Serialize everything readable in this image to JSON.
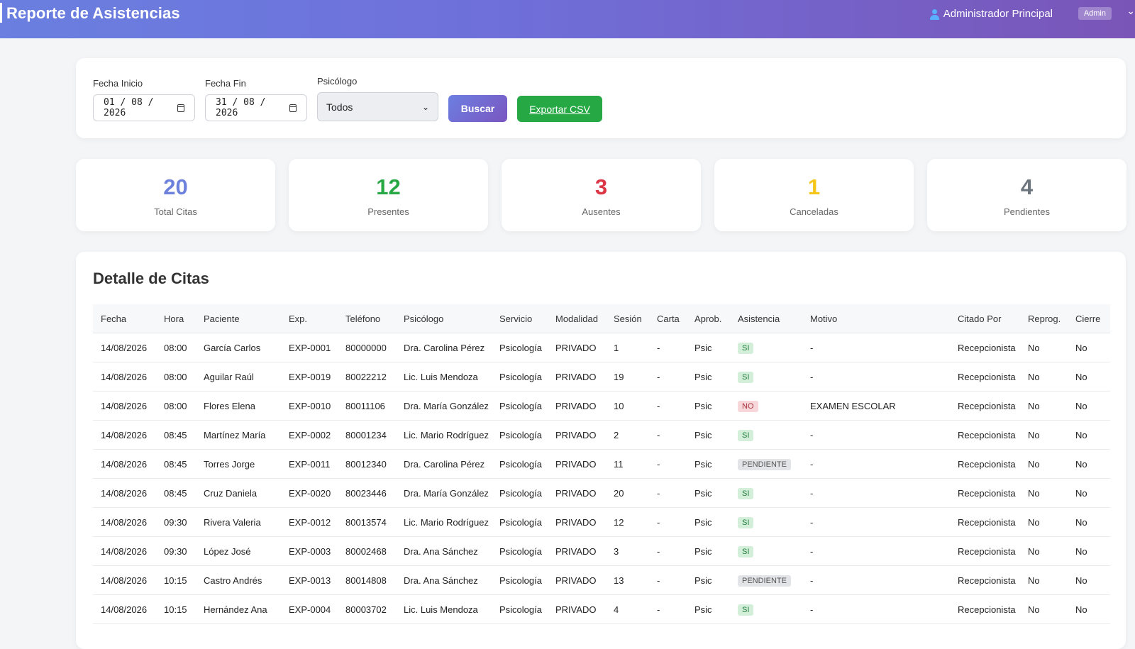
{
  "header": {
    "title": "Reporte de Asistencias",
    "user_name": "Administrador Principal",
    "role_badge": "Admin",
    "user_icon": "user-icon"
  },
  "filters": {
    "start_label": "Fecha Inicio",
    "start_value": "01 / 08 / 2026",
    "end_label": "Fecha Fin",
    "end_value": "31 / 08 / 2026",
    "psych_label": "Psicólogo",
    "psych_selected": "Todos",
    "search_button": "Buscar",
    "export_button": "Exportar CSV"
  },
  "stats": [
    {
      "value": "20",
      "label": "Total Citas",
      "color": "#6c80dc"
    },
    {
      "value": "12",
      "label": "Presentes",
      "color": "#28a745"
    },
    {
      "value": "3",
      "label": "Ausentes",
      "color": "#dc3545"
    },
    {
      "value": "1",
      "label": "Canceladas",
      "color": "#f5c518"
    },
    {
      "value": "4",
      "label": "Pendientes",
      "color": "#6c757d"
    }
  ],
  "detail": {
    "title": "Detalle de Citas",
    "columns": [
      "Fecha",
      "Hora",
      "Paciente",
      "Exp.",
      "Teléfono",
      "Psicólogo",
      "Servicio",
      "Modalidad",
      "Sesión",
      "Carta",
      "Aprob.",
      "Asistencia",
      "Motivo",
      "Citado Por",
      "Reprog.",
      "Cierre"
    ],
    "rows": [
      [
        "14/08/2026",
        "08:00",
        "García Carlos",
        "EXP-0001",
        "80000000",
        "Dra. Carolina Pérez",
        "Psicología",
        "PRIVADO",
        "1",
        "-",
        "Psic",
        "SI",
        "-",
        "Recepcionista",
        "No",
        "No"
      ],
      [
        "14/08/2026",
        "08:00",
        "Aguilar Raúl",
        "EXP-0019",
        "80022212",
        "Lic. Luis Mendoza",
        "Psicología",
        "PRIVADO",
        "19",
        "-",
        "Psic",
        "SI",
        "-",
        "Recepcionista",
        "No",
        "No"
      ],
      [
        "14/08/2026",
        "08:00",
        "Flores Elena",
        "EXP-0010",
        "80011106",
        "Dra. María González",
        "Psicología",
        "PRIVADO",
        "10",
        "-",
        "Psic",
        "NO",
        "EXAMEN ESCOLAR",
        "Recepcionista",
        "No",
        "No"
      ],
      [
        "14/08/2026",
        "08:45",
        "Martínez María",
        "EXP-0002",
        "80001234",
        "Lic. Mario Rodríguez",
        "Psicología",
        "PRIVADO",
        "2",
        "-",
        "Psic",
        "SI",
        "-",
        "Recepcionista",
        "No",
        "No"
      ],
      [
        "14/08/2026",
        "08:45",
        "Torres Jorge",
        "EXP-0011",
        "80012340",
        "Dra. Carolina Pérez",
        "Psicología",
        "PRIVADO",
        "11",
        "-",
        "Psic",
        "PENDIENTE",
        "-",
        "Recepcionista",
        "No",
        "No"
      ],
      [
        "14/08/2026",
        "08:45",
        "Cruz Daniela",
        "EXP-0020",
        "80023446",
        "Dra. María González",
        "Psicología",
        "PRIVADO",
        "20",
        "-",
        "Psic",
        "SI",
        "-",
        "Recepcionista",
        "No",
        "No"
      ],
      [
        "14/08/2026",
        "09:30",
        "Rivera Valeria",
        "EXP-0012",
        "80013574",
        "Lic. Mario Rodríguez",
        "Psicología",
        "PRIVADO",
        "12",
        "-",
        "Psic",
        "SI",
        "-",
        "Recepcionista",
        "No",
        "No"
      ],
      [
        "14/08/2026",
        "09:30",
        "López José",
        "EXP-0003",
        "80002468",
        "Dra. Ana Sánchez",
        "Psicología",
        "PRIVADO",
        "3",
        "-",
        "Psic",
        "SI",
        "-",
        "Recepcionista",
        "No",
        "No"
      ],
      [
        "14/08/2026",
        "10:15",
        "Castro Andrés",
        "EXP-0013",
        "80014808",
        "Dra. Ana Sánchez",
        "Psicología",
        "PRIVADO",
        "13",
        "-",
        "Psic",
        "PENDIENTE",
        "-",
        "Recepcionista",
        "No",
        "No"
      ],
      [
        "14/08/2026",
        "10:15",
        "Hernández Ana",
        "EXP-0004",
        "80003702",
        "Lic. Luis Mendoza",
        "Psicología",
        "PRIVADO",
        "4",
        "-",
        "Psic",
        "SI",
        "-",
        "Recepcionista",
        "No",
        "No"
      ]
    ]
  }
}
